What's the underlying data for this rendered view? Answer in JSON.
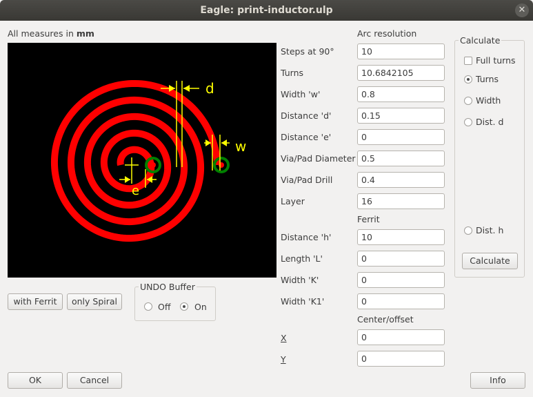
{
  "window": {
    "title": "Eagle: print-inductor.ulp",
    "close_glyph": "✕"
  },
  "header": {
    "measures_prefix": "All measures in",
    "measures_unit": "mm"
  },
  "diagram": {
    "label_d": "d",
    "label_w": "w",
    "label_e": "e",
    "colors": {
      "spiral": "#ff0000",
      "pads": "#008000",
      "annotations": "#ffff00",
      "background": "#000000"
    }
  },
  "arc_section": {
    "heading": "Arc resolution"
  },
  "params": [
    {
      "label": "Steps at 90°",
      "value": "10"
    },
    {
      "label": "Turns",
      "value": "10.6842105"
    },
    {
      "label": "Width 'w'",
      "value": "0.8"
    },
    {
      "label": "Distance 'd'",
      "value": "0.15"
    },
    {
      "label": "Distance 'e'",
      "value": "0"
    },
    {
      "label": "Via/Pad Diameter",
      "value": "0.5"
    },
    {
      "label": "Via/Pad Drill",
      "value": "0.4"
    },
    {
      "label": "Layer",
      "value": "16"
    }
  ],
  "ferrit": {
    "heading": "Ferrit",
    "params": [
      {
        "label": "Distance 'h'",
        "value": "10"
      },
      {
        "label": "Length 'L'",
        "value": "0"
      },
      {
        "label": "Width 'K'",
        "value": "0"
      },
      {
        "label": "Width 'K1'",
        "value": "0"
      }
    ]
  },
  "center": {
    "heading": "Center/offset",
    "params": [
      {
        "label": "X",
        "value": "0"
      },
      {
        "label": "Y",
        "value": "0"
      }
    ]
  },
  "calculate": {
    "title": "Calculate",
    "full_turns": {
      "label": "Full turns",
      "checked": false
    },
    "options": [
      {
        "label": "Turns",
        "selected": true
      },
      {
        "label": "Width",
        "selected": false
      },
      {
        "label": "Dist. d",
        "selected": false
      },
      {
        "label": "Dist. h",
        "selected": false
      }
    ],
    "button": "Calculate"
  },
  "buttons": {
    "with_ferrit": "with Ferrit",
    "only_spiral": "only Spiral",
    "ok": "OK",
    "cancel": "Cancel",
    "info": "Info"
  },
  "undo": {
    "title": "UNDO Buffer",
    "off": "Off",
    "on": "On",
    "selected": "On"
  }
}
